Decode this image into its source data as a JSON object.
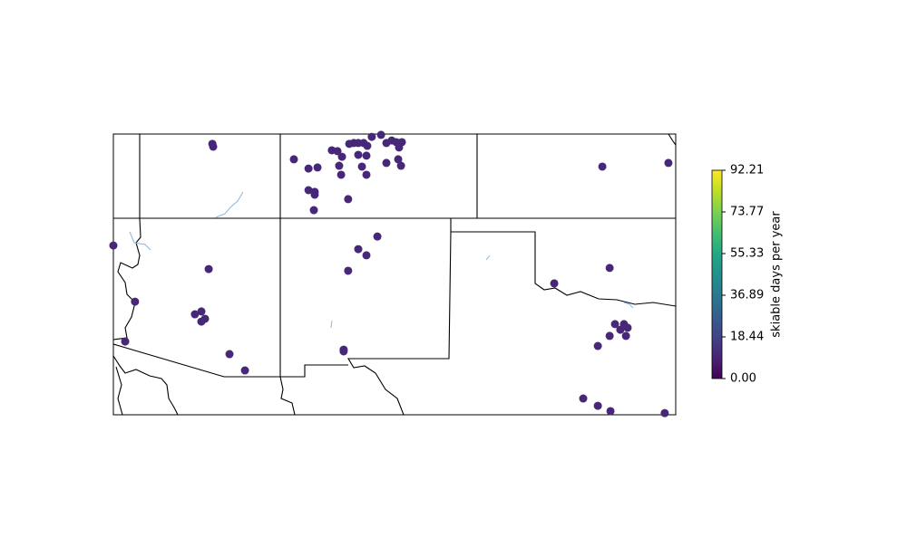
{
  "chart_data": {
    "type": "scatter",
    "x": [
      -111.48,
      -111.45,
      -108.58,
      -108.06,
      -107.74,
      -107.23,
      -107.03,
      -106.87,
      -106.97,
      -106.9,
      -106.61,
      -106.45,
      -106.29,
      -106.1,
      -105.97,
      -106.29,
      -106.0,
      -106.16,
      -106.0,
      -105.81,
      -105.48,
      -105.29,
      -105.1,
      -104.94,
      -104.74,
      -104.84,
      -104.87,
      -104.77,
      -105.29,
      -108.06,
      -107.84,
      -107.84,
      -106.65,
      -107.87,
      -105.61,
      -106.29,
      -106.0,
      -106.65,
      -111.61,
      -114.23,
      -111.87,
      -112.1,
      -111.74,
      -111.87,
      -114.58,
      -110.87,
      -110.32,
      -106.81,
      -106.81,
      -97.61,
      -95.26,
      -97.35,
      -99.32,
      -97.16,
      -96.84,
      -96.71,
      -96.97,
      -97.35,
      -96.77,
      -97.77,
      -98.29,
      -97.77,
      -97.32,
      -95.39,
      -115.0
    ],
    "y": [
      39.65,
      39.55,
      39.1,
      38.77,
      38.81,
      39.42,
      39.39,
      39.19,
      38.87,
      38.55,
      39.65,
      39.68,
      39.68,
      39.68,
      39.58,
      39.26,
      39.23,
      38.84,
      38.55,
      39.9,
      39.97,
      39.68,
      39.77,
      39.71,
      39.71,
      39.52,
      39.1,
      38.87,
      38.97,
      38.0,
      37.94,
      37.84,
      37.68,
      37.29,
      36.35,
      35.9,
      35.68,
      35.13,
      35.19,
      34.03,
      33.68,
      33.58,
      33.42,
      33.32,
      32.61,
      32.16,
      31.58,
      32.32,
      32.26,
      38.84,
      38.97,
      35.23,
      34.68,
      33.23,
      33.23,
      33.1,
      33.03,
      32.81,
      32.81,
      32.45,
      30.58,
      30.32,
      30.13,
      30.06,
      36.03
    ],
    "values": [
      10,
      10,
      10,
      10,
      10,
      10,
      10,
      10,
      10,
      10,
      10,
      10,
      10,
      10,
      10,
      10,
      10,
      10,
      10,
      10,
      10,
      10,
      10,
      10,
      10,
      10,
      10,
      10,
      10,
      10,
      10,
      10,
      10,
      10,
      10,
      10,
      10,
      10,
      10,
      10,
      10,
      10,
      10,
      10,
      10,
      10,
      10,
      10,
      10,
      10,
      10,
      10,
      10,
      10,
      10,
      10,
      10,
      10,
      10,
      10,
      10,
      10,
      10,
      10,
      10
    ],
    "xlim": [
      -115,
      -95
    ],
    "ylim": [
      30,
      40
    ],
    "colormap": "viridis",
    "clim": [
      0,
      92.21
    ],
    "cticks": [
      {
        "value": 0,
        "label": "0.00"
      },
      18.44,
      36.89,
      55.33,
      73.77,
      92.21
    ],
    "colorbar_label": "skiable days per year"
  }
}
